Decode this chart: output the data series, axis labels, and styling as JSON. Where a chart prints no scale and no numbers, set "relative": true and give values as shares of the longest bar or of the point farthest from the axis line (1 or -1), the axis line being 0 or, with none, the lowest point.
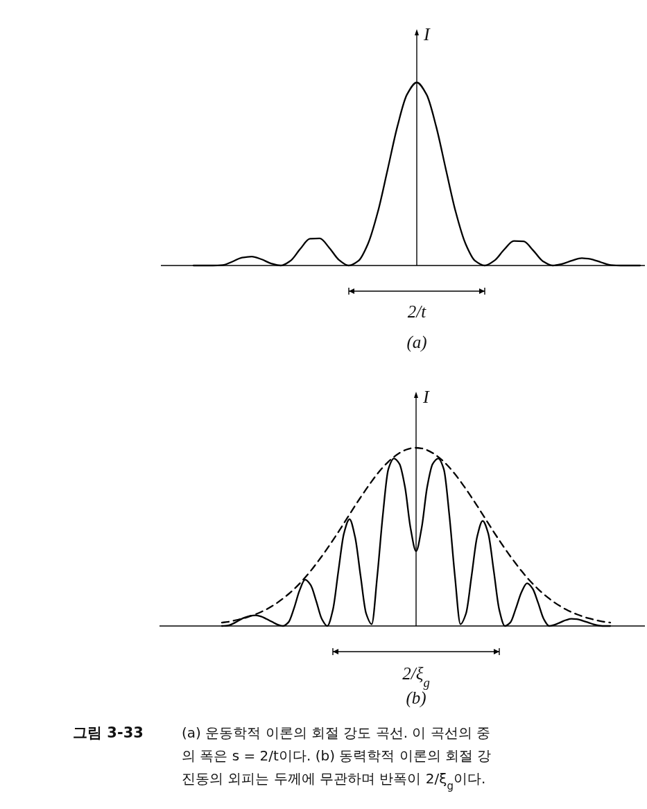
{
  "chart_data": [
    {
      "type": "line",
      "relative": true,
      "ylabel": "I",
      "xlabel": "(a)",
      "annotations": [
        "2/t"
      ],
      "categories": [
        null,
        null,
        null,
        null,
        null,
        null,
        null,
        null,
        null,
        null,
        null,
        null,
        null,
        null,
        null,
        null,
        null,
        null,
        null,
        null,
        null,
        null,
        null,
        null,
        null,
        null,
        null,
        null,
        null,
        null,
        null,
        null,
        null,
        null,
        null,
        null,
        null,
        null,
        null,
        null,
        null,
        null,
        null,
        null,
        null,
        null,
        null
      ],
      "series": [
        {
          "color": "#000000",
          "line_style": "solid",
          "values": [
            0,
            0,
            0,
            0.002,
            0.021,
            0.043,
            0.049,
            0.034,
            0.011,
            0,
            0.026,
            0.091,
            0.146,
            0.148,
            0.096,
            0.03,
            0,
            0.026,
            0.122,
            0.295,
            0.525,
            0.759,
            0.935,
            1,
            0.935,
            0.759,
            0.525,
            0.295,
            0.122,
            0.026,
            0,
            0.027,
            0.087,
            0.134,
            0.132,
            0.082,
            0.023,
            0,
            0.009,
            0.027,
            0.04,
            0.034,
            0.017,
            0.002,
            0,
            0,
            0
          ]
        }
      ]
    },
    {
      "type": "line",
      "relative": true,
      "ylabel": "I",
      "xlabel": "(b)",
      "annotations": [
        "2/ξ$_{g}$",
        "그림 3-33",
        "(a) 운동학적 이론의 회절 강도 곡선. 이 곡선의 중\n의 폭은 s = 2/t이다. (b) 동력학적 이론의 회절 강\n진동의 외피는 두께에 무관하며 반폭이 2/ξ$_{g}$이다."
      ],
      "categories": [
        null,
        null,
        null,
        null,
        null,
        null,
        null,
        null,
        null,
        null,
        null,
        null,
        null,
        null,
        null,
        null,
        null,
        null,
        null,
        null,
        null,
        null,
        null,
        null,
        null,
        null,
        null,
        null,
        null,
        null,
        null,
        null,
        null,
        null,
        null,
        null,
        null,
        null,
        null,
        null,
        null,
        null,
        null,
        null,
        null,
        null,
        null,
        null,
        null,
        null,
        null,
        null,
        null,
        null,
        null,
        null,
        null,
        null,
        null,
        null,
        null,
        null,
        null,
        null,
        null,
        null,
        null,
        null,
        null,
        null,
        null
      ],
      "series": [
        {
          "color": "#000000",
          "line_style": "solid",
          "values": [
            0,
            0.002,
            0.013,
            0.03,
            0.046,
            0.056,
            0.06,
            0.054,
            0.04,
            0.024,
            0.008,
            0,
            0.021,
            0.1,
            0.2,
            0.26,
            0.23,
            0.14,
            0.04,
            0,
            0.09,
            0.31,
            0.52,
            0.6,
            0.5,
            0.28,
            0.07,
            0.01,
            0.28,
            0.62,
            0.88,
            0.94,
            0.91,
            0.78,
            0.55,
            0.42,
            0.55,
            0.78,
            0.91,
            0.94,
            0.88,
            0.62,
            0.28,
            0.01,
            0.07,
            0.28,
            0.5,
            0.59,
            0.52,
            0.31,
            0.09,
            0,
            0.02,
            0.1,
            0.19,
            0.24,
            0.21,
            0.13,
            0.04,
            0,
            0.007,
            0.02,
            0.033,
            0.04,
            0.038,
            0.03,
            0.02,
            0.009,
            0.002,
            0,
            0
          ]
        },
        {
          "color": "#000000",
          "line_style": "dashed",
          "values": [
            0.019,
            0.023,
            0.029,
            0.036,
            0.044,
            0.054,
            0.065,
            0.078,
            0.093,
            0.111,
            0.131,
            0.154,
            0.179,
            0.207,
            0.238,
            0.272,
            0.309,
            0.349,
            0.391,
            0.435,
            0.481,
            0.528,
            0.577,
            0.626,
            0.675,
            0.722,
            0.768,
            0.812,
            0.853,
            0.89,
            0.922,
            0.949,
            0.971,
            0.987,
            0.997,
            1,
            0.997,
            0.987,
            0.971,
            0.949,
            0.922,
            0.89,
            0.853,
            0.812,
            0.768,
            0.722,
            0.675,
            0.626,
            0.577,
            0.528,
            0.481,
            0.435,
            0.391,
            0.349,
            0.309,
            0.272,
            0.238,
            0.207,
            0.179,
            0.154,
            0.131,
            0.111,
            0.093,
            0.078,
            0.065,
            0.054,
            0.044,
            0.036,
            0.029,
            0.023,
            0.019
          ]
        }
      ]
    }
  ]
}
